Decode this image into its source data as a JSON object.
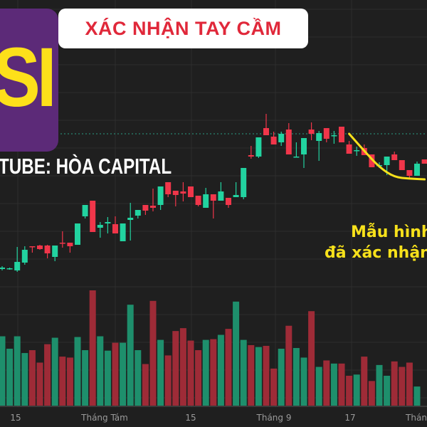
{
  "header": {
    "badge_text": "XÁC NHẬN TAY CẦM",
    "logo_text": "SI",
    "channel_text": "TUBE: HÒA CAPITAL"
  },
  "annotation": {
    "line1": "Mẫu hình",
    "line2": "đã xác nhận"
  },
  "colors": {
    "background": "#1f1f1f",
    "up": "#22d3a0",
    "down": "#f0364a",
    "volume_up": "#1e8f6c",
    "volume_down": "#9e2b37",
    "curve": "#f7e11b",
    "logo_bg": "#5c2a78",
    "logo_text": "#fde01a",
    "badge_text": "#e0283a"
  },
  "chart_data": {
    "type": "candlestick",
    "x_tick_labels": [
      "15",
      "Tháng Tám",
      "15",
      "Tháng 9",
      "17",
      "Thán"
    ],
    "grid": true,
    "price_line": 41.2,
    "ohlc": [
      [
        22.2,
        22.6,
        22.0,
        22.4
      ],
      [
        22.3,
        22.4,
        22.1,
        22.3
      ],
      [
        22.0,
        25.3,
        21.8,
        23.2
      ],
      [
        23.1,
        25.4,
        22.8,
        24.9
      ],
      [
        25.4,
        25.4,
        24.5,
        25.3
      ],
      [
        25.5,
        25.6,
        24.9,
        25.0
      ],
      [
        25.5,
        25.6,
        23.7,
        24.4
      ],
      [
        23.9,
        25.5,
        23.3,
        25.5
      ],
      [
        25.9,
        27.5,
        25.2,
        25.8
      ],
      [
        25.9,
        25.9,
        24.5,
        25.4
      ],
      [
        25.6,
        28.6,
        25.6,
        28.6
      ],
      [
        29.6,
        31.2,
        29.3,
        31.2
      ],
      [
        31.8,
        31.8,
        27.4,
        27.4
      ],
      [
        28.0,
        28.8,
        26.6,
        28.4
      ],
      [
        28.6,
        29.5,
        27.2,
        28.8
      ],
      [
        28.5,
        29.6,
        27.2,
        27.2
      ],
      [
        26.1,
        28.6,
        26.1,
        28.6
      ],
      [
        29.1,
        31.5,
        26.2,
        29.4
      ],
      [
        29.7,
        30.5,
        29.3,
        30.5
      ],
      [
        31.2,
        31.2,
        29.8,
        30.4
      ],
      [
        31.1,
        33.5,
        30.3,
        30.8
      ],
      [
        31.2,
        33.8,
        30.5,
        33.8
      ],
      [
        34.4,
        34.4,
        32.3,
        32.7
      ],
      [
        33.2,
        33.2,
        31.0,
        32.6
      ],
      [
        33.1,
        34.4,
        31.7,
        32.8
      ],
      [
        33.8,
        33.8,
        32.3,
        32.3
      ],
      [
        32.5,
        32.5,
        31.0,
        31.2
      ],
      [
        30.8,
        33.6,
        30.8,
        32.7
      ],
      [
        32.7,
        32.7,
        29.3,
        31.8
      ],
      [
        31.8,
        34.4,
        31.8,
        33.1
      ],
      [
        32.2,
        32.2,
        30.8,
        31.2
      ],
      [
        32.3,
        34.4,
        32.3,
        32.6
      ],
      [
        32.3,
        36.4,
        32.0,
        36.4
      ],
      [
        38.2,
        39.5,
        37.7,
        38.0
      ],
      [
        38.0,
        40.7,
        37.8,
        40.7
      ],
      [
        42.0,
        44.0,
        41.0,
        41.0
      ],
      [
        40.8,
        41.5,
        39.7,
        39.7
      ],
      [
        40.0,
        41.5,
        39.5,
        41.2
      ],
      [
        41.8,
        42.7,
        38.3,
        38.3
      ],
      [
        38.0,
        40.0,
        38.0,
        38.0
      ],
      [
        38.3,
        40.6,
        36.4,
        40.6
      ],
      [
        41.8,
        42.8,
        40.3,
        41.2
      ],
      [
        40.2,
        41.6,
        37.4,
        41.3
      ],
      [
        42.0,
        42.0,
        40.0,
        40.5
      ],
      [
        40.9,
        41.6,
        39.8,
        41.0
      ],
      [
        42.2,
        42.2,
        40.0,
        40.0
      ],
      [
        39.7,
        40.2,
        38.4,
        38.4
      ],
      [
        38.9,
        39.4,
        38.1,
        38.9
      ],
      [
        39.2,
        39.7,
        38.2,
        38.2
      ],
      [
        38.3,
        38.3,
        36.5,
        36.5
      ],
      [
        36.7,
        37.2,
        36.4,
        36.8
      ],
      [
        36.8,
        38.0,
        35.4,
        38.0
      ],
      [
        38.3,
        38.7,
        37.5,
        37.5
      ],
      [
        37.5,
        37.5,
        36.1,
        36.1
      ],
      [
        36.1,
        36.1,
        34.8,
        35.3
      ],
      [
        35.3,
        37.3,
        35.3,
        37.0
      ],
      [
        37.6,
        37.6,
        37.0,
        37.0
      ]
    ],
    "volume": [
      290,
      238,
      290,
      220,
      232,
      180,
      257,
      284,
      205,
      201,
      287,
      232,
      482,
      290,
      230,
      263,
      263,
      422,
      232,
      174,
      438,
      275,
      210,
      312,
      324,
      272,
      232,
      275,
      278,
      296,
      321,
      435,
      275,
      253,
      245,
      250,
      155,
      238,
      334,
      241,
      201,
      395,
      162,
      189,
      176,
      176,
      125,
      130,
      205,
      103,
      170,
      125,
      185,
      162,
      180,
      80,
      0
    ],
    "curve": [
      [
        46,
        41.2
      ],
      [
        48,
        38.8
      ],
      [
        50,
        36.5
      ],
      [
        52,
        35.1
      ],
      [
        54,
        34.9
      ],
      [
        56,
        34.8
      ]
    ]
  }
}
